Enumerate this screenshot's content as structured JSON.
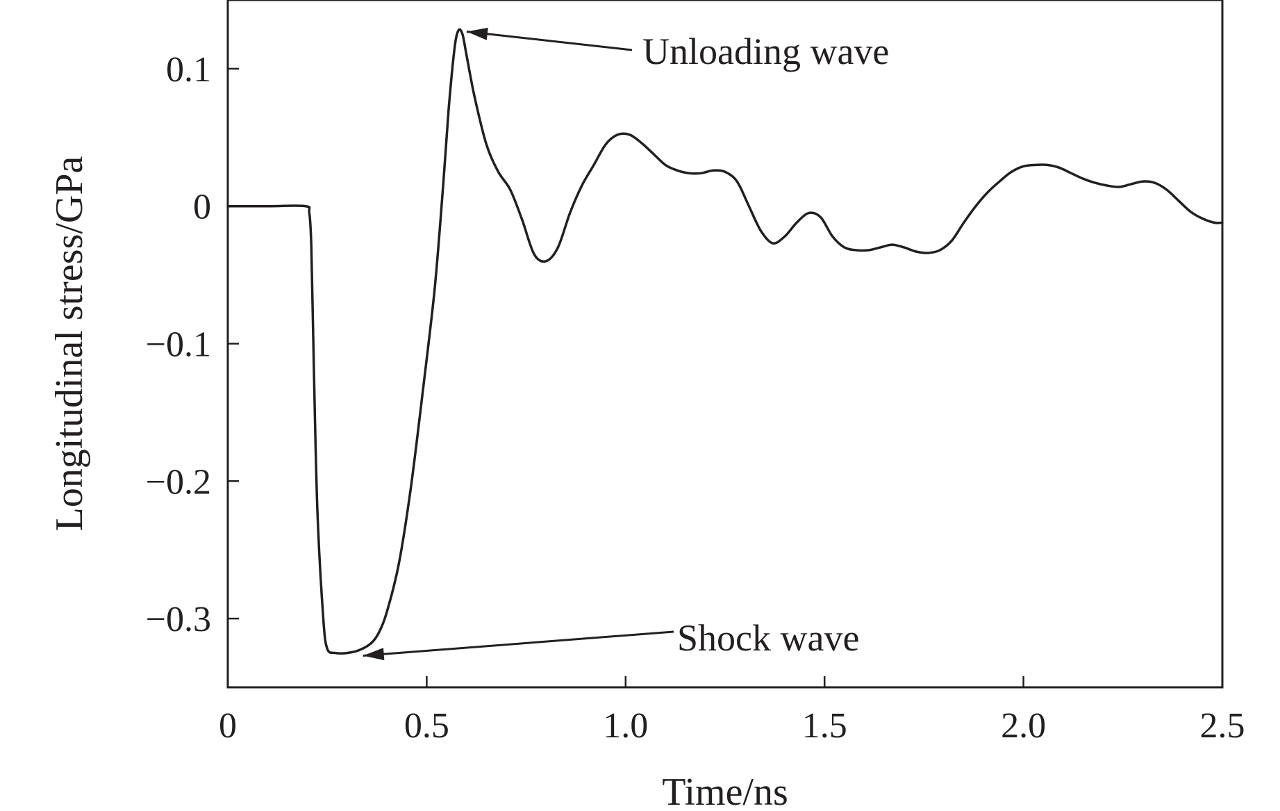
{
  "chart_data": {
    "type": "line",
    "title": "",
    "xlabel": "Time/ns",
    "ylabel": "Longitudinal stress/GPa",
    "xlim": [
      0,
      2.5
    ],
    "ylim": [
      -0.35,
      0.15
    ],
    "grid": false,
    "x_ticks": [
      0,
      0.5,
      1.0,
      1.5,
      2.0,
      2.5
    ],
    "x_tick_labels": [
      "0",
      "0.5",
      "1.0",
      "1.5",
      "2.0",
      "2.5"
    ],
    "y_ticks": [
      0.1,
      0,
      -0.1,
      -0.2,
      -0.3
    ],
    "y_tick_labels": [
      "0.1",
      "0",
      "−0.1",
      "−0.2",
      "−0.3"
    ],
    "series": [
      {
        "name": "Longitudinal stress",
        "color": "#231f20",
        "x": [
          0,
          0.1,
          0.195,
          0.205,
          0.21,
          0.215,
          0.225,
          0.24,
          0.25,
          0.27,
          0.3,
          0.33,
          0.36,
          0.38,
          0.4,
          0.43,
          0.46,
          0.49,
          0.52,
          0.54,
          0.555,
          0.57,
          0.58,
          0.59,
          0.6,
          0.62,
          0.65,
          0.68,
          0.71,
          0.74,
          0.77,
          0.8,
          0.83,
          0.86,
          0.89,
          0.92,
          0.95,
          0.98,
          1.01,
          1.04,
          1.07,
          1.1,
          1.13,
          1.16,
          1.19,
          1.22,
          1.25,
          1.28,
          1.31,
          1.34,
          1.37,
          1.4,
          1.43,
          1.46,
          1.49,
          1.52,
          1.55,
          1.58,
          1.61,
          1.64,
          1.67,
          1.7,
          1.73,
          1.76,
          1.79,
          1.82,
          1.85,
          1.88,
          1.91,
          1.94,
          1.97,
          2.0,
          2.03,
          2.06,
          2.09,
          2.12,
          2.15,
          2.18,
          2.21,
          2.24,
          2.27,
          2.3,
          2.33,
          2.36,
          2.39,
          2.42,
          2.45,
          2.48,
          2.5
        ],
        "y": [
          0,
          0,
          0,
          -0.005,
          -0.03,
          -0.1,
          -0.22,
          -0.3,
          -0.322,
          -0.325,
          -0.325,
          -0.323,
          -0.318,
          -0.31,
          -0.295,
          -0.26,
          -0.205,
          -0.135,
          -0.06,
          0.01,
          0.07,
          0.115,
          0.128,
          0.125,
          0.11,
          0.08,
          0.045,
          0.025,
          0.012,
          -0.01,
          -0.035,
          -0.04,
          -0.03,
          -0.005,
          0.015,
          0.03,
          0.045,
          0.052,
          0.052,
          0.046,
          0.038,
          0.03,
          0.026,
          0.024,
          0.024,
          0.026,
          0.025,
          0.018,
          0.0,
          -0.018,
          -0.027,
          -0.022,
          -0.012,
          -0.005,
          -0.008,
          -0.022,
          -0.03,
          -0.032,
          -0.032,
          -0.03,
          -0.028,
          -0.03,
          -0.033,
          -0.034,
          -0.032,
          -0.025,
          -0.012,
          0.0,
          0.01,
          0.018,
          0.025,
          0.029,
          0.03,
          0.03,
          0.028,
          0.024,
          0.02,
          0.017,
          0.015,
          0.014,
          0.016,
          0.018,
          0.017,
          0.012,
          0.004,
          -0.004,
          -0.009,
          -0.012,
          -0.012
        ]
      }
    ],
    "annotations": [
      {
        "text": "Unloading wave",
        "point": {
          "x": 0.59,
          "y": 0.128
        }
      },
      {
        "text": "Shock wave",
        "point": {
          "x": 0.34,
          "y": -0.327
        }
      }
    ]
  }
}
